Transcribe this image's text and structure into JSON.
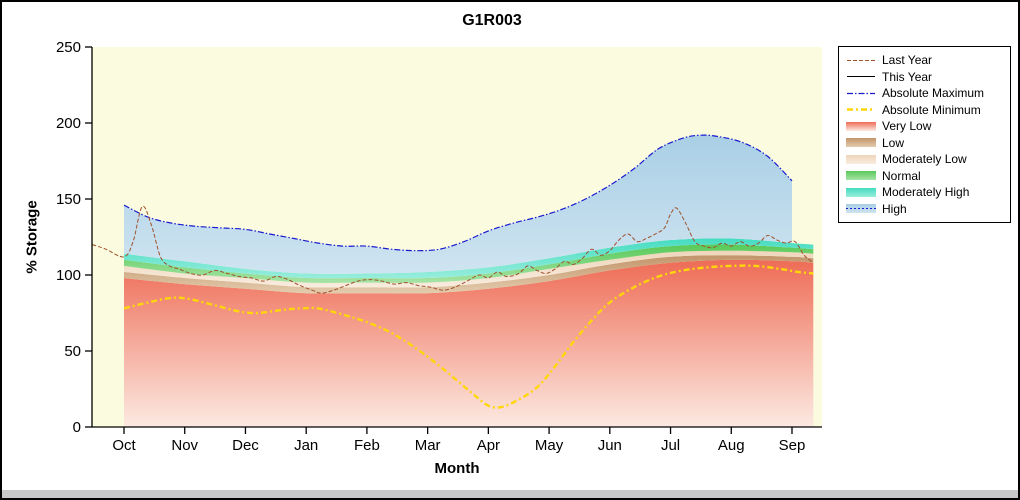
{
  "chart_data": {
    "type": "area",
    "title": "G1R003",
    "xlabel": "Month",
    "ylabel": "% Storage",
    "x_categories": [
      "Oct",
      "Nov",
      "Dec",
      "Jan",
      "Feb",
      "Mar",
      "Apr",
      "May",
      "Jun",
      "Jul",
      "Aug",
      "Sep"
    ],
    "ylim": [
      0,
      250
    ],
    "yticks": [
      0,
      50,
      100,
      150,
      200,
      250
    ],
    "legend_position": "right",
    "grid": false,
    "series": {
      "absolute_maximum": [
        [
          0,
          146
        ],
        [
          0.4,
          138
        ],
        [
          0.8,
          134
        ],
        [
          1.2,
          132
        ],
        [
          1.6,
          131
        ],
        [
          2,
          130
        ],
        [
          2.4,
          127
        ],
        [
          2.8,
          124
        ],
        [
          3.2,
          121
        ],
        [
          3.6,
          119
        ],
        [
          4,
          119
        ],
        [
          4.4,
          117
        ],
        [
          4.8,
          116
        ],
        [
          5.2,
          117
        ],
        [
          5.6,
          122
        ],
        [
          6,
          129
        ],
        [
          6.4,
          134
        ],
        [
          6.8,
          138
        ],
        [
          7.2,
          143
        ],
        [
          7.6,
          150
        ],
        [
          8,
          159
        ],
        [
          8.4,
          170
        ],
        [
          8.8,
          183
        ],
        [
          9.2,
          190
        ],
        [
          9.5,
          192
        ],
        [
          9.8,
          191
        ],
        [
          10.2,
          187
        ],
        [
          10.6,
          178
        ],
        [
          11,
          162
        ]
      ],
      "absolute_minimum": [
        [
          0,
          78
        ],
        [
          0.4,
          82
        ],
        [
          0.8,
          85
        ],
        [
          1.1,
          84
        ],
        [
          1.5,
          80
        ],
        [
          1.9,
          76
        ],
        [
          2.2,
          75
        ],
        [
          2.6,
          77
        ],
        [
          2.9,
          78
        ],
        [
          3.2,
          78
        ],
        [
          3.6,
          74
        ],
        [
          4,
          69
        ],
        [
          4.4,
          62
        ],
        [
          4.8,
          52
        ],
        [
          5.2,
          40
        ],
        [
          5.5,
          30
        ],
        [
          5.8,
          20
        ],
        [
          6,
          14
        ],
        [
          6.2,
          13
        ],
        [
          6.45,
          17
        ],
        [
          6.8,
          26
        ],
        [
          7.1,
          40
        ],
        [
          7.4,
          56
        ],
        [
          7.7,
          70
        ],
        [
          8,
          82
        ],
        [
          8.4,
          92
        ],
        [
          8.8,
          99
        ],
        [
          9.2,
          103
        ],
        [
          9.6,
          105
        ],
        [
          10,
          106
        ],
        [
          10.4,
          106
        ],
        [
          10.8,
          104
        ],
        [
          11.1,
          102
        ],
        [
          11.35,
          101
        ]
      ],
      "last_year": [
        [
          -0.52,
          120
        ],
        [
          -0.3,
          117
        ],
        [
          0,
          112
        ],
        [
          0.15,
          122
        ],
        [
          0.3,
          145
        ],
        [
          0.45,
          133
        ],
        [
          0.6,
          112
        ],
        [
          0.75,
          106
        ],
        [
          0.9,
          104
        ],
        [
          1.1,
          101
        ],
        [
          1.3,
          100
        ],
        [
          1.5,
          103
        ],
        [
          1.7,
          101
        ],
        [
          1.9,
          99
        ],
        [
          2.1,
          98
        ],
        [
          2.3,
          96
        ],
        [
          2.5,
          99
        ],
        [
          2.7,
          97
        ],
        [
          2.9,
          93
        ],
        [
          3.1,
          90
        ],
        [
          3.25,
          88
        ],
        [
          3.45,
          90
        ],
        [
          3.65,
          93
        ],
        [
          3.85,
          96
        ],
        [
          4.05,
          97
        ],
        [
          4.25,
          96
        ],
        [
          4.45,
          94
        ],
        [
          4.65,
          95
        ],
        [
          4.85,
          93
        ],
        [
          5.05,
          92
        ],
        [
          5.25,
          90
        ],
        [
          5.45,
          92
        ],
        [
          5.65,
          96
        ],
        [
          5.85,
          100
        ],
        [
          6,
          98
        ],
        [
          6.15,
          102
        ],
        [
          6.3,
          99
        ],
        [
          6.5,
          101
        ],
        [
          6.65,
          106
        ],
        [
          6.8,
          103
        ],
        [
          6.95,
          101
        ],
        [
          7.1,
          104
        ],
        [
          7.25,
          109
        ],
        [
          7.4,
          107
        ],
        [
          7.55,
          111
        ],
        [
          7.7,
          117
        ],
        [
          7.85,
          113
        ],
        [
          8,
          116
        ],
        [
          8.15,
          123
        ],
        [
          8.3,
          127
        ],
        [
          8.45,
          122
        ],
        [
          8.6,
          124
        ],
        [
          8.75,
          127
        ],
        [
          8.9,
          131
        ],
        [
          9,
          140
        ],
        [
          9.1,
          144
        ],
        [
          9.25,
          134
        ],
        [
          9.4,
          122
        ],
        [
          9.55,
          119
        ],
        [
          9.7,
          118
        ],
        [
          9.85,
          121
        ],
        [
          10,
          119
        ],
        [
          10.15,
          122
        ],
        [
          10.3,
          119
        ],
        [
          10.45,
          121
        ],
        [
          10.6,
          126
        ],
        [
          10.75,
          123
        ],
        [
          10.9,
          121
        ],
        [
          11.05,
          122
        ],
        [
          11.2,
          113
        ],
        [
          11.35,
          108
        ]
      ],
      "this_year": [],
      "bands": {
        "x": [
          0,
          1,
          2,
          3,
          4,
          5,
          6,
          7,
          8,
          9,
          10,
          11,
          11.35
        ],
        "very_low_top": [
          98,
          94,
          91,
          88,
          88,
          88,
          91,
          96,
          103,
          108,
          110,
          109,
          108
        ],
        "low_top": [
          102,
          98,
          95,
          92,
          92,
          92,
          95,
          100,
          107,
          112,
          113,
          112,
          111
        ],
        "moderately_low_top": [
          106,
          101,
          98,
          95,
          95,
          95,
          98,
          104,
          110,
          115,
          116,
          115,
          114
        ],
        "normal_top": [
          110,
          105,
          101,
          98,
          98,
          98,
          101,
          107,
          114,
          119,
          120,
          118,
          117
        ],
        "moderately_high_top": [
          114,
          109,
          104,
          101,
          101,
          102,
          105,
          111,
          118,
          123,
          124,
          121,
          120
        ]
      }
    }
  },
  "legend": {
    "items": [
      {
        "label": "Last Year",
        "swatch": "line",
        "key": "last_year"
      },
      {
        "label": "This Year",
        "swatch": "line",
        "key": "this_year"
      },
      {
        "label": "Absolute Maximum",
        "swatch": "line",
        "key": "absolute_maximum"
      },
      {
        "label": "Absolute Minimum",
        "swatch": "line",
        "key": "absolute_minimum"
      },
      {
        "label": "Very Low",
        "swatch": "patch",
        "key": "very_low"
      },
      {
        "label": "Low",
        "swatch": "patch",
        "key": "low"
      },
      {
        "label": "Moderately Low",
        "swatch": "patch",
        "key": "moderately_low"
      },
      {
        "label": "Normal",
        "swatch": "patch",
        "key": "normal"
      },
      {
        "label": "Moderately High",
        "swatch": "patch",
        "key": "moderately_high"
      },
      {
        "label": "High",
        "swatch": "patch_line",
        "key": "high",
        "line_key": "absolute_maximum",
        "line_dash": "2 2"
      }
    ]
  },
  "colors": {
    "plot_bg": "#FBFBE0",
    "axis": "#000000",
    "bands": {
      "very_low": {
        "top": "#EE6C56",
        "bottom": "#FCEAE2"
      },
      "low": {
        "top": "#C2946A",
        "bottom": "#E3CCAE"
      },
      "moderately_low": {
        "top": "#EFD5BB",
        "bottom": "#F8ECDE"
      },
      "normal": {
        "top": "#58C958",
        "bottom": "#A6E3A6"
      },
      "moderately_high": {
        "top": "#45DCC1",
        "bottom": "#98EDDC"
      },
      "high": {
        "top": "#A9CFE5",
        "bottom": "#CFE4F1"
      }
    },
    "lines": {
      "last_year": {
        "color": "#A0522D",
        "dash": "4 2",
        "width": 1
      },
      "this_year": {
        "color": "#000000",
        "dash": "",
        "width": 1
      },
      "absolute_maximum": {
        "color": "#1A1ACF",
        "dash": "6 2 1.5 2",
        "width": 1.2
      },
      "absolute_minimum": {
        "color": "#FFD60A",
        "dash": "6 3 2 3",
        "width": 2.4
      }
    }
  }
}
